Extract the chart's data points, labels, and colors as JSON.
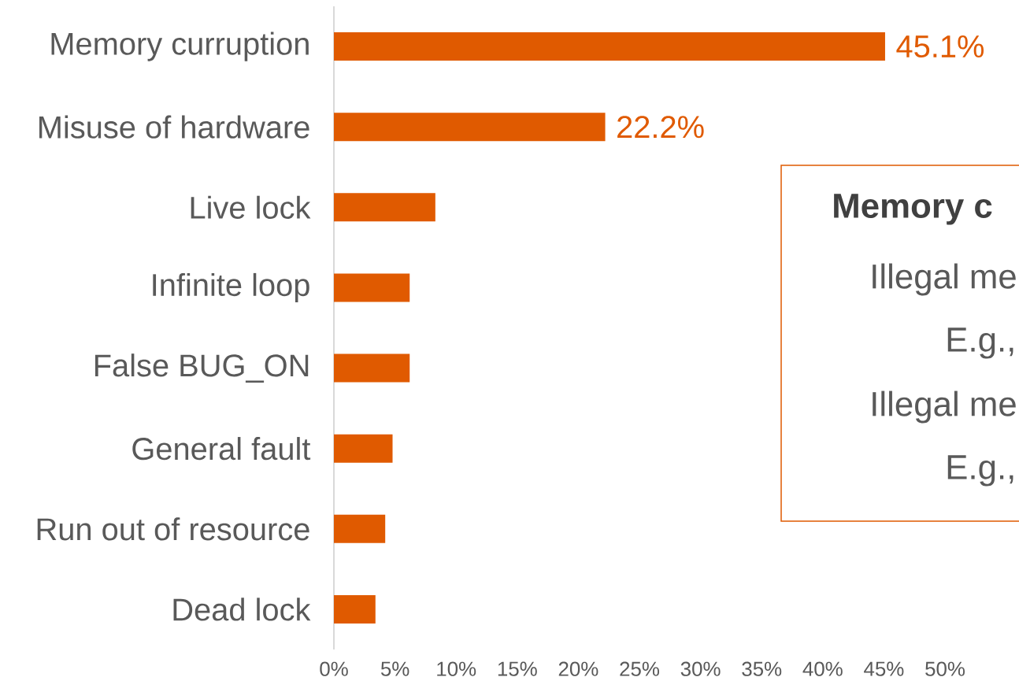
{
  "chart_data": {
    "type": "bar",
    "orientation": "horizontal",
    "categories": [
      "Memory curruption",
      "Misuse of hardware",
      "Live lock",
      "Infinite loop",
      "False BUG_ON",
      "General fault",
      "Run out of resource",
      "Dead lock"
    ],
    "values": [
      45.1,
      22.2,
      8.3,
      6.2,
      6.2,
      4.8,
      4.2,
      3.4
    ],
    "value_labels": [
      "45.1%",
      "22.2%",
      null,
      null,
      null,
      null,
      null,
      null
    ],
    "color": "#e05a00",
    "xlim": [
      0,
      50
    ],
    "xticks": [
      {
        "value": 0,
        "label": "0%"
      },
      {
        "value": 5,
        "label": "5%"
      },
      {
        "value": 10,
        "label": "10%"
      },
      {
        "value": 15,
        "label": "15%"
      },
      {
        "value": 20,
        "label": "20%"
      },
      {
        "value": 25,
        "label": "25%"
      },
      {
        "value": 30,
        "label": "30%"
      },
      {
        "value": 35,
        "label": "35%"
      },
      {
        "value": 40,
        "label": "40%"
      },
      {
        "value": 45,
        "label": "45%"
      },
      {
        "value": 50,
        "label": "50%"
      }
    ],
    "annotations": [
      "Memory c",
      "Illegal me",
      "E.g.,",
      "Illegal me",
      "E.g.,"
    ]
  }
}
